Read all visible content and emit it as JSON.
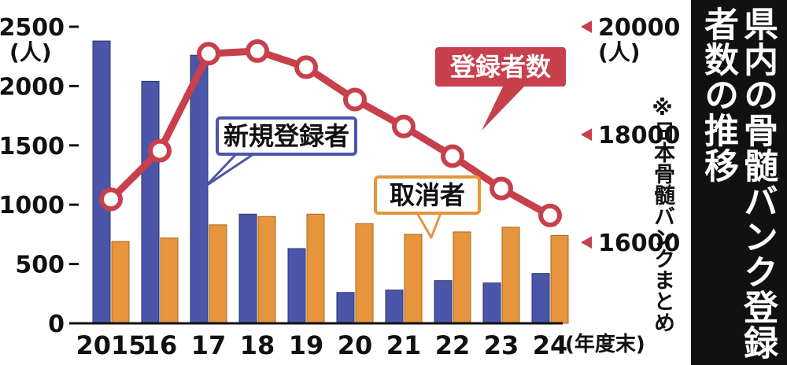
{
  "title_lines": [
    "県内の骨髄バンク登録",
    "者数の推移"
  ],
  "source_note": "※日本骨髄バンクまとめ",
  "colors": {
    "new_registrants": "#4b56a8",
    "cancellations": "#e6953c",
    "registered_total": "#c7404c",
    "text": "#111111",
    "title_bg": "#111111"
  },
  "chart_data": {
    "type": "bar+line",
    "categories": [
      "2015",
      "16",
      "17",
      "18",
      "19",
      "20",
      "21",
      "22",
      "23",
      "24"
    ],
    "x_unit": "(年度末)",
    "left_axis": {
      "unit": "(人)",
      "range": [
        0,
        2500
      ],
      "ticks": [
        "0",
        "500",
        "1000",
        "1500",
        "2000",
        "2500"
      ]
    },
    "right_axis": {
      "unit": "(人)",
      "range": [
        14500,
        20000
      ],
      "ticks": [
        "16000",
        "18000",
        "20000"
      ]
    },
    "series": [
      {
        "name": "新規登録者",
        "type": "bar",
        "axis": "left",
        "values": [
          2380,
          2040,
          2260,
          920,
          630,
          260,
          280,
          360,
          340,
          420
        ]
      },
      {
        "name": "取消者",
        "type": "bar",
        "axis": "left",
        "values": [
          690,
          720,
          830,
          900,
          920,
          840,
          750,
          770,
          810,
          740
        ]
      },
      {
        "name": "登録者数",
        "type": "line",
        "axis": "right",
        "values": [
          16800,
          17700,
          19500,
          19550,
          19250,
          18650,
          18150,
          17600,
          17000,
          16500
        ]
      }
    ]
  }
}
